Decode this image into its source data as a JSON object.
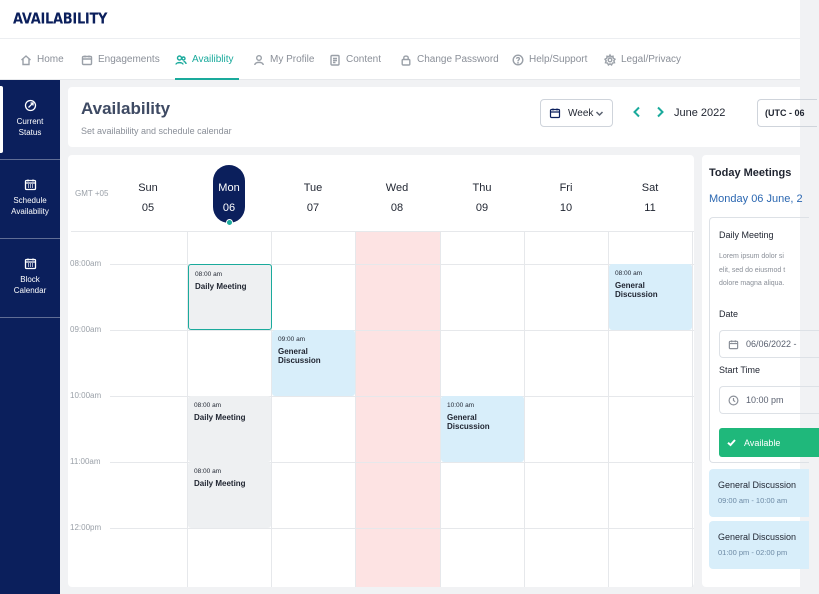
{
  "brand": {
    "logo": "AVAILABILITY"
  },
  "nav": {
    "items": [
      {
        "label": "Home",
        "icon": "home-icon"
      },
      {
        "label": "Engagements",
        "icon": "calendar-icon"
      },
      {
        "label": "Availiblity",
        "icon": "users-icon",
        "active": true
      },
      {
        "label": "My Profile",
        "icon": "user-icon"
      },
      {
        "label": "Content",
        "icon": "document-icon"
      },
      {
        "label": "Change Password",
        "icon": "lock-icon"
      },
      {
        "label": "Help/Support",
        "icon": "help-icon"
      },
      {
        "label": "Legal/Privacy",
        "icon": "gear-icon"
      }
    ]
  },
  "sidebar": {
    "items": [
      {
        "label_line1": "Current",
        "label_line2": "Status",
        "icon": "status-icon",
        "active": true
      },
      {
        "label_line1": "Schedule",
        "label_line2": "Availability",
        "icon": "calendar-grid-icon"
      },
      {
        "label_line1": "Block",
        "label_line2": "Calendar",
        "icon": "calendar-grid-icon"
      }
    ]
  },
  "header": {
    "title": "Availability",
    "subtitle": "Set availability and schedule calendar",
    "view_select": "Week",
    "month": "June 2022",
    "timezone": "(UTC - 06"
  },
  "calendar": {
    "gmt_label": "GMT +05",
    "days": [
      {
        "name": "Sun",
        "date": "05"
      },
      {
        "name": "Mon",
        "date": "06",
        "selected": true
      },
      {
        "name": "Tue",
        "date": "07"
      },
      {
        "name": "Wed",
        "date": "08",
        "blocked": true
      },
      {
        "name": "Thu",
        "date": "09"
      },
      {
        "name": "Fri",
        "date": "10"
      },
      {
        "name": "Sat",
        "date": "11"
      }
    ],
    "times": [
      "08:00am",
      "09:00am",
      "10:00am",
      "11:00am",
      "12:00pm"
    ],
    "events": [
      {
        "time": "08:00 am",
        "title": "Daily Meeting",
        "day": "Mon",
        "slot": "08:00am",
        "style": "grey",
        "selected": true
      },
      {
        "time": "08:00 am",
        "title": "General Discussion",
        "day": "Sat",
        "slot": "08:00am",
        "style": "blue"
      },
      {
        "time": "09:00 am",
        "title": "General Discussion",
        "day": "Tue",
        "slot": "09:00am",
        "style": "blue"
      },
      {
        "time": "08:00 am",
        "title": "Daily Meeting",
        "day": "Mon",
        "slot": "10:00am",
        "style": "grey"
      },
      {
        "time": "10:00 am",
        "title": "General Discussion",
        "day": "Thu",
        "slot": "10:00am",
        "style": "blue"
      },
      {
        "time": "08:00 am",
        "title": "Daily Meeting",
        "day": "Mon",
        "slot": "11:00am",
        "style": "grey"
      }
    ]
  },
  "today": {
    "title": "Today Meetings",
    "date": "Monday 06 June, 2",
    "meeting": {
      "title": "Daily Meeting",
      "desc_line1": "Lorem ipsum dolor si",
      "desc_line2": "elit, sed do eiusmod t",
      "desc_line3": "dolore magna aliqua.",
      "date_label": "Date",
      "date_value": "06/06/2022 -",
      "start_label": "Start Time",
      "start_value": "10:00 pm",
      "button": "Available"
    },
    "list": [
      {
        "title": "General Discussion",
        "time": "09:00 am - 10:00 am"
      },
      {
        "title": "General Discussion",
        "time": "01:00 pm - 02:00 pm"
      }
    ]
  }
}
